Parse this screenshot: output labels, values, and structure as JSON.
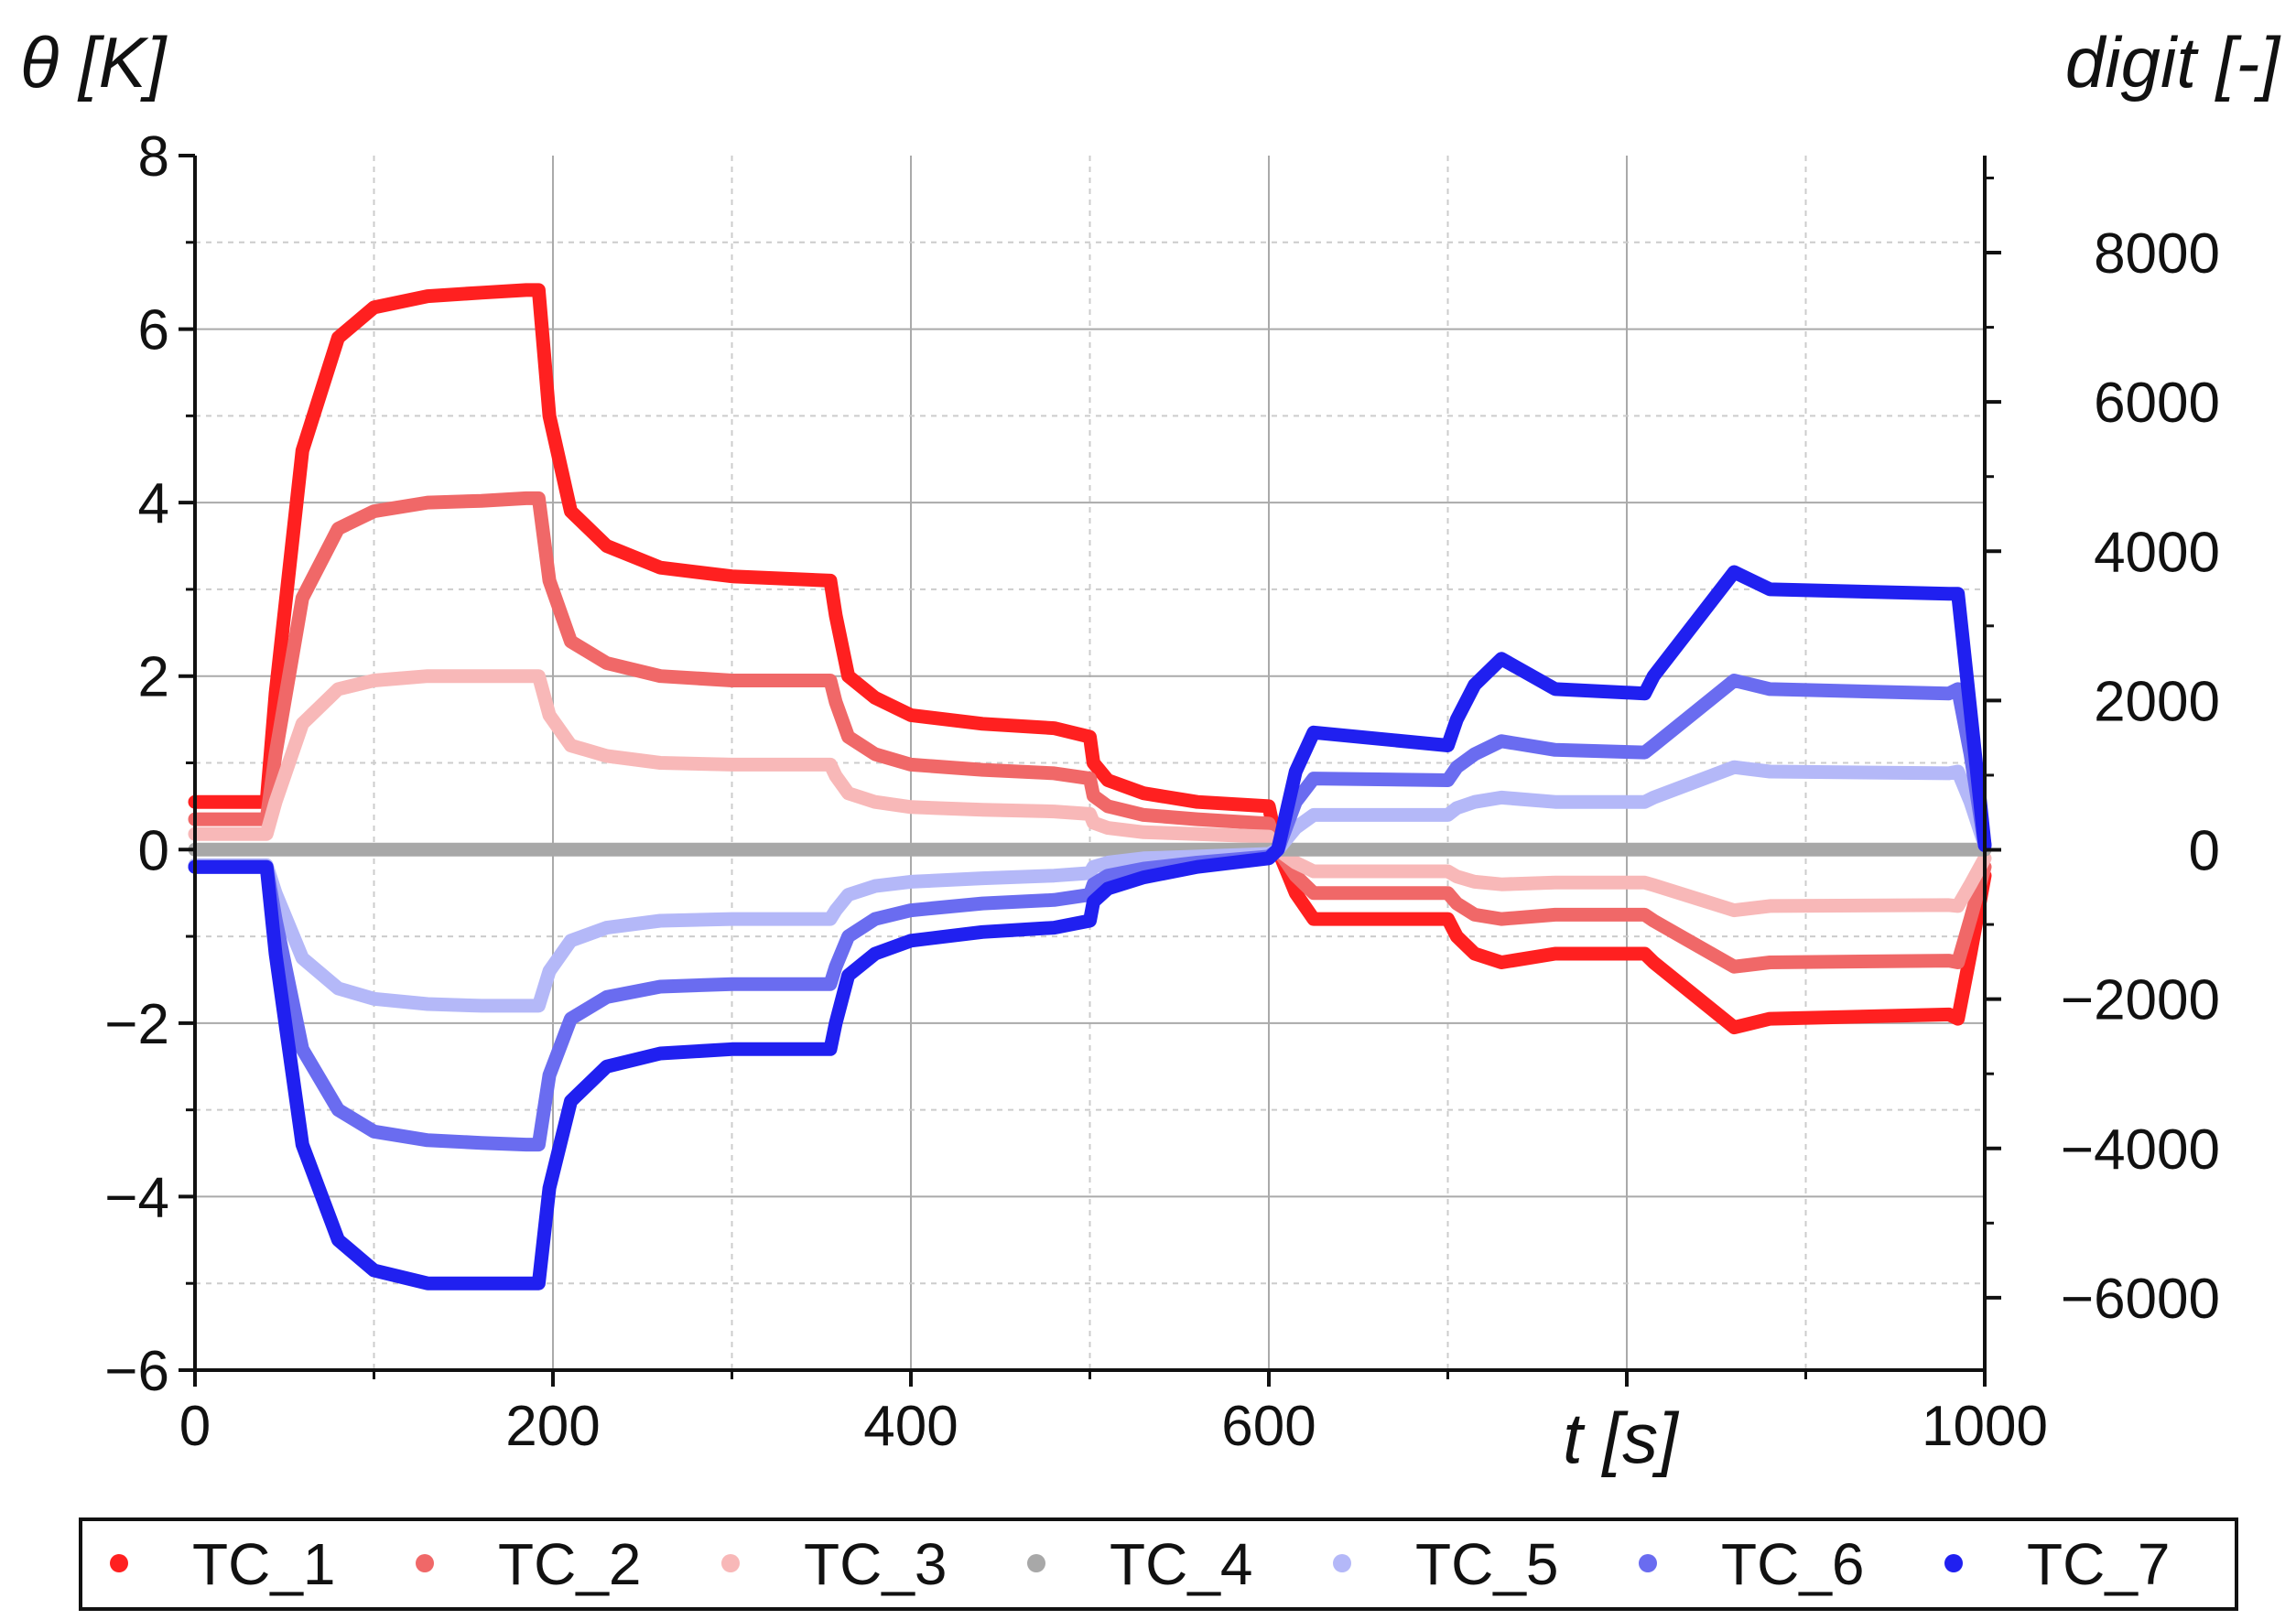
{
  "chart_data": {
    "type": "line",
    "title": "",
    "xlabel": "t [s]",
    "ylabel": "θ [K]",
    "y2label": "digit [-]",
    "xlim": [
      0,
      1000
    ],
    "ylim": [
      -6,
      8
    ],
    "y2lim": [
      -6970,
      9300
    ],
    "xticks": [
      0,
      200,
      400,
      600,
      1000
    ],
    "xtick_labels": [
      "0",
      "200",
      "400",
      "600",
      "1000"
    ],
    "yticks": [
      -6,
      -4,
      -2,
      0,
      2,
      4,
      6,
      8
    ],
    "ytick_labels": [
      "−6",
      "−4",
      "−2",
      "0",
      "2",
      "4",
      "6",
      "8"
    ],
    "y2ticks": [
      -6000,
      -4000,
      -2000,
      0,
      2000,
      4000,
      6000,
      8000
    ],
    "y2tick_labels": [
      "−6000",
      "−4000",
      "−2000",
      "0",
      "2000",
      "4000",
      "6000",
      "8000"
    ],
    "grid": true,
    "legend_position": "bottom",
    "series": [
      {
        "name": "TC_1",
        "color": "#ff2020",
        "x": [
          0,
          40,
          45,
          60,
          80,
          100,
          130,
          160,
          185,
          192,
          198,
          210,
          230,
          260,
          300,
          355,
          358,
          365,
          380,
          400,
          440,
          480,
          500,
          502,
          510,
          530,
          560,
          600,
          605,
          615,
          625,
          700,
          705,
          715,
          730,
          760,
          810,
          815,
          860,
          880,
          980,
          985,
          992,
          1000
        ],
        "y": [
          0.55,
          0.55,
          1.8,
          4.6,
          5.9,
          6.25,
          6.38,
          6.42,
          6.45,
          6.45,
          5.0,
          3.9,
          3.5,
          3.25,
          3.15,
          3.1,
          2.7,
          2.0,
          1.75,
          1.55,
          1.45,
          1.4,
          1.3,
          1.0,
          0.8,
          0.65,
          0.55,
          0.5,
          0.0,
          -0.5,
          -0.8,
          -0.8,
          -1.0,
          -1.2,
          -1.3,
          -1.2,
          -1.2,
          -1.3,
          -2.05,
          -1.95,
          -1.9,
          -1.95,
          -1.2,
          -0.3
        ]
      },
      {
        "name": "TC_2",
        "color": "#f06868",
        "x": [
          0,
          40,
          45,
          60,
          80,
          100,
          130,
          160,
          185,
          192,
          198,
          210,
          230,
          260,
          300,
          355,
          358,
          365,
          380,
          400,
          440,
          480,
          500,
          502,
          510,
          530,
          560,
          600,
          605,
          615,
          625,
          700,
          705,
          715,
          730,
          760,
          810,
          815,
          860,
          880,
          980,
          985,
          992,
          1000
        ],
        "y": [
          0.35,
          0.35,
          1.1,
          2.9,
          3.7,
          3.9,
          4.0,
          4.02,
          4.05,
          4.05,
          3.1,
          2.4,
          2.15,
          2.0,
          1.95,
          1.95,
          1.7,
          1.3,
          1.1,
          0.98,
          0.92,
          0.88,
          0.82,
          0.62,
          0.5,
          0.4,
          0.35,
          0.3,
          0.0,
          -0.3,
          -0.5,
          -0.5,
          -0.62,
          -0.75,
          -0.8,
          -0.75,
          -0.75,
          -0.82,
          -1.35,
          -1.3,
          -1.28,
          -1.3,
          -0.8,
          -0.2
        ]
      },
      {
        "name": "TC_3",
        "color": "#f8b8b8",
        "x": [
          0,
          40,
          45,
          60,
          80,
          100,
          130,
          160,
          185,
          192,
          198,
          210,
          230,
          260,
          300,
          355,
          358,
          365,
          380,
          400,
          440,
          480,
          500,
          502,
          510,
          530,
          560,
          600,
          605,
          615,
          625,
          700,
          705,
          715,
          730,
          760,
          810,
          815,
          860,
          880,
          980,
          985,
          992,
          1000
        ],
        "y": [
          0.18,
          0.18,
          0.55,
          1.45,
          1.85,
          1.95,
          2.0,
          2.0,
          2.0,
          2.0,
          1.55,
          1.2,
          1.08,
          1.0,
          0.98,
          0.98,
          0.85,
          0.65,
          0.55,
          0.49,
          0.46,
          0.44,
          0.41,
          0.31,
          0.25,
          0.2,
          0.18,
          0.15,
          0.0,
          -0.15,
          -0.25,
          -0.25,
          -0.31,
          -0.37,
          -0.4,
          -0.38,
          -0.38,
          -0.41,
          -0.7,
          -0.65,
          -0.64,
          -0.65,
          -0.4,
          -0.1
        ]
      },
      {
        "name": "TC_4",
        "color": "#a8a8a8",
        "x": [
          0,
          1000
        ],
        "y": [
          0,
          0
        ]
      },
      {
        "name": "TC_5",
        "color": "#b4b8f8",
        "x": [
          0,
          40,
          45,
          60,
          80,
          100,
          130,
          160,
          185,
          192,
          198,
          210,
          230,
          260,
          300,
          355,
          358,
          365,
          380,
          400,
          440,
          480,
          500,
          502,
          510,
          530,
          560,
          600,
          605,
          615,
          625,
          700,
          705,
          715,
          730,
          760,
          810,
          815,
          860,
          880,
          980,
          985,
          992,
          1000
        ],
        "y": [
          -0.18,
          -0.18,
          -0.5,
          -1.25,
          -1.6,
          -1.72,
          -1.78,
          -1.8,
          -1.8,
          -1.8,
          -1.4,
          -1.05,
          -0.9,
          -0.82,
          -0.8,
          -0.8,
          -0.7,
          -0.52,
          -0.42,
          -0.37,
          -0.33,
          -0.3,
          -0.27,
          -0.2,
          -0.15,
          -0.1,
          -0.08,
          -0.05,
          0.0,
          0.25,
          0.4,
          0.4,
          0.48,
          0.55,
          0.6,
          0.55,
          0.55,
          0.6,
          0.95,
          0.9,
          0.88,
          0.9,
          0.55,
          0.05
        ]
      },
      {
        "name": "TC_6",
        "color": "#6a6cf0",
        "x": [
          0,
          40,
          45,
          60,
          80,
          100,
          130,
          160,
          185,
          192,
          198,
          210,
          230,
          260,
          300,
          355,
          358,
          365,
          380,
          400,
          440,
          480,
          500,
          502,
          510,
          530,
          560,
          600,
          605,
          615,
          625,
          700,
          705,
          715,
          730,
          760,
          810,
          815,
          860,
          880,
          980,
          985,
          992,
          1000
        ],
        "y": [
          -0.2,
          -0.2,
          -0.8,
          -2.3,
          -3.0,
          -3.25,
          -3.35,
          -3.38,
          -3.4,
          -3.4,
          -2.6,
          -1.95,
          -1.7,
          -1.58,
          -1.55,
          -1.55,
          -1.35,
          -1.0,
          -0.8,
          -0.7,
          -0.62,
          -0.58,
          -0.52,
          -0.4,
          -0.3,
          -0.22,
          -0.15,
          -0.08,
          0.0,
          0.55,
          0.82,
          0.8,
          0.95,
          1.1,
          1.25,
          1.15,
          1.12,
          1.2,
          1.95,
          1.85,
          1.8,
          1.85,
          1.1,
          0.05
        ]
      },
      {
        "name": "TC_7",
        "color": "#2020f0",
        "x": [
          0,
          40,
          45,
          60,
          80,
          100,
          130,
          160,
          185,
          192,
          198,
          210,
          230,
          260,
          300,
          355,
          358,
          365,
          380,
          400,
          440,
          480,
          500,
          502,
          510,
          530,
          560,
          600,
          605,
          615,
          625,
          700,
          705,
          715,
          730,
          760,
          810,
          815,
          860,
          880,
          980,
          985,
          992,
          1000
        ],
        "y": [
          -0.2,
          -0.2,
          -1.2,
          -3.4,
          -4.5,
          -4.85,
          -5.0,
          -5.0,
          -5.0,
          -5.0,
          -3.9,
          -2.9,
          -2.5,
          -2.35,
          -2.3,
          -2.3,
          -2.0,
          -1.45,
          -1.2,
          -1.05,
          -0.95,
          -0.9,
          -0.82,
          -0.6,
          -0.45,
          -0.32,
          -0.2,
          -0.1,
          0.0,
          0.9,
          1.35,
          1.2,
          1.5,
          1.9,
          2.2,
          1.85,
          1.8,
          2.0,
          3.2,
          3.0,
          2.95,
          2.95,
          1.6,
          0.05
        ]
      }
    ]
  }
}
